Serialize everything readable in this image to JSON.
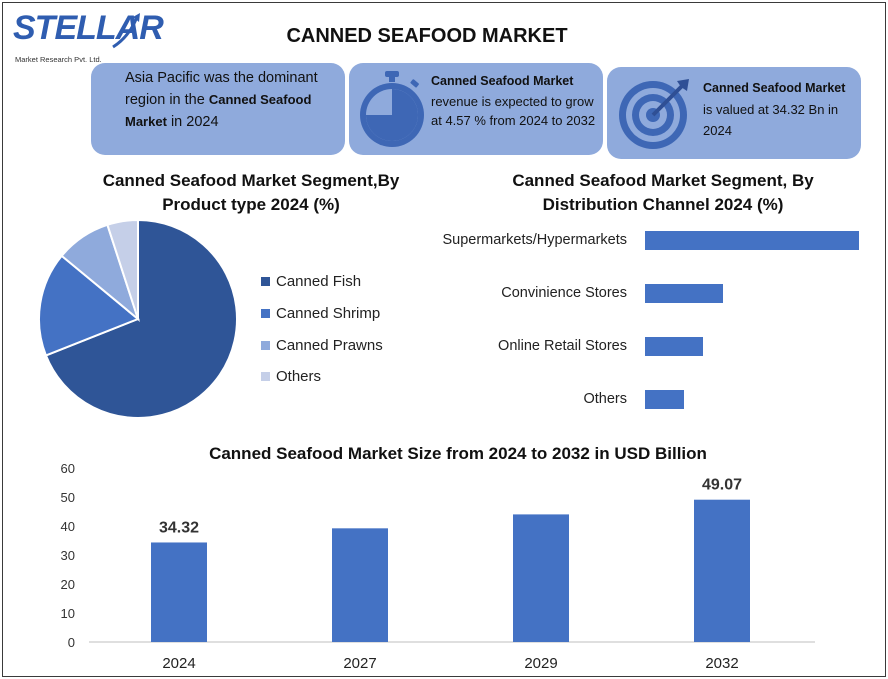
{
  "logo": {
    "word": "STELLAR",
    "subtitle": "Market Research Pvt. Ltd."
  },
  "title": "CANNED SEAFOOD MARKET",
  "cards": {
    "card1": {
      "text_a": "Asia Pacific was the dominant region in the ",
      "bold": "Canned Seafood Market",
      "text_b": " in 2024"
    },
    "card2": {
      "bold": "Canned Seafood Market",
      "text": " revenue is expected to grow at 4.57 % from 2024 to 2032"
    },
    "card3": {
      "bold": "Canned Seafood Market",
      "text": " is valued at 34.32 Bn in 2024"
    }
  },
  "colors": {
    "card_bg": "#8faadc",
    "bar": "#4472c4",
    "icon": "#3e67b5"
  },
  "icons": {
    "card2": "stopwatch-icon",
    "card3": "target-icon"
  },
  "chart_data": [
    {
      "type": "pie",
      "title": "Canned Seafood Market Segment,By Product type 2024 (%)",
      "categories": [
        "Canned Fish",
        "Canned Shrimp",
        "Canned Prawns",
        "Others"
      ],
      "values": [
        69,
        17,
        9,
        5
      ],
      "colors": [
        "#2f5597",
        "#4472c4",
        "#8faadc",
        "#c5cfe8"
      ],
      "legend": "right"
    },
    {
      "type": "bar",
      "orientation": "horizontal",
      "title": "Canned Seafood Market Segment, By Distribution Channel 2024 (%)",
      "categories": [
        "Supermarkets/Hypermarkets",
        "Convinience Stores",
        "Online Retail Stores",
        "Others"
      ],
      "values": [
        55,
        20,
        15,
        10
      ],
      "xlim": [
        0,
        55
      ]
    },
    {
      "type": "bar",
      "title": "Canned Seafood Market Size from 2024 to 2032 in USD Billion",
      "categories": [
        "2024",
        "2027",
        "2029",
        "2032"
      ],
      "values": [
        34.32,
        39.2,
        44.0,
        49.07
      ],
      "data_labels": [
        "34.32",
        "",
        "",
        "49.07"
      ],
      "yticks": [
        "0",
        "10",
        "20",
        "30",
        "40",
        "50",
        "60"
      ],
      "ylim": [
        0,
        60
      ],
      "grid": false
    }
  ]
}
